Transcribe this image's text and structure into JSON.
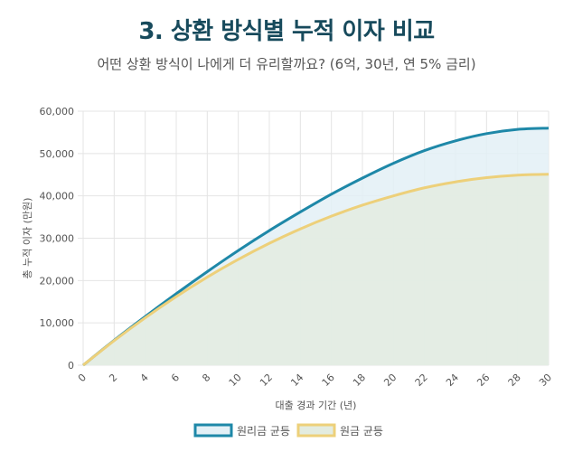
{
  "header": {
    "title": "3. 상환 방식별 누적 이자 비교",
    "subtitle": "어떤 상환 방식이 나에게 더 유리할까요? (6억, 30년, 연 5% 금리)"
  },
  "chart_data": {
    "type": "area",
    "xlabel": "대출 경과 기간 (년)",
    "ylabel": "총 누적 이자 (만원)",
    "x": [
      0,
      2,
      4,
      6,
      8,
      10,
      12,
      14,
      16,
      18,
      20,
      22,
      24,
      26,
      28,
      30
    ],
    "xlim": [
      0,
      30
    ],
    "ylim": [
      0,
      60000
    ],
    "y_ticks": [
      0,
      10000,
      20000,
      30000,
      40000,
      50000,
      60000
    ],
    "y_tick_labels": [
      "0",
      "10,000",
      "20,000",
      "30,000",
      "40,000",
      "50,000",
      "60,000"
    ],
    "x_tick_labels": [
      "0",
      "2",
      "4",
      "6",
      "8",
      "10",
      "12",
      "14",
      "16",
      "18",
      "20",
      "22",
      "24",
      "26",
      "28",
      "30"
    ],
    "grid": true,
    "legend_position": "bottom",
    "series": [
      {
        "name": "원리금 균등",
        "color": "#1e88a8",
        "fill": "#e3f0f6",
        "values": [
          0,
          5900,
          11500,
          16900,
          22100,
          27100,
          31800,
          36200,
          40400,
          44200,
          47700,
          50700,
          53000,
          54700,
          55700,
          56000
        ]
      },
      {
        "name": "원금 균등",
        "color": "#edd07a",
        "fill": "#e3ece0",
        "values": [
          0,
          5800,
          11200,
          16200,
          20800,
          25000,
          28800,
          32200,
          35200,
          37800,
          40000,
          41900,
          43300,
          44300,
          44900,
          45100
        ]
      }
    ]
  }
}
